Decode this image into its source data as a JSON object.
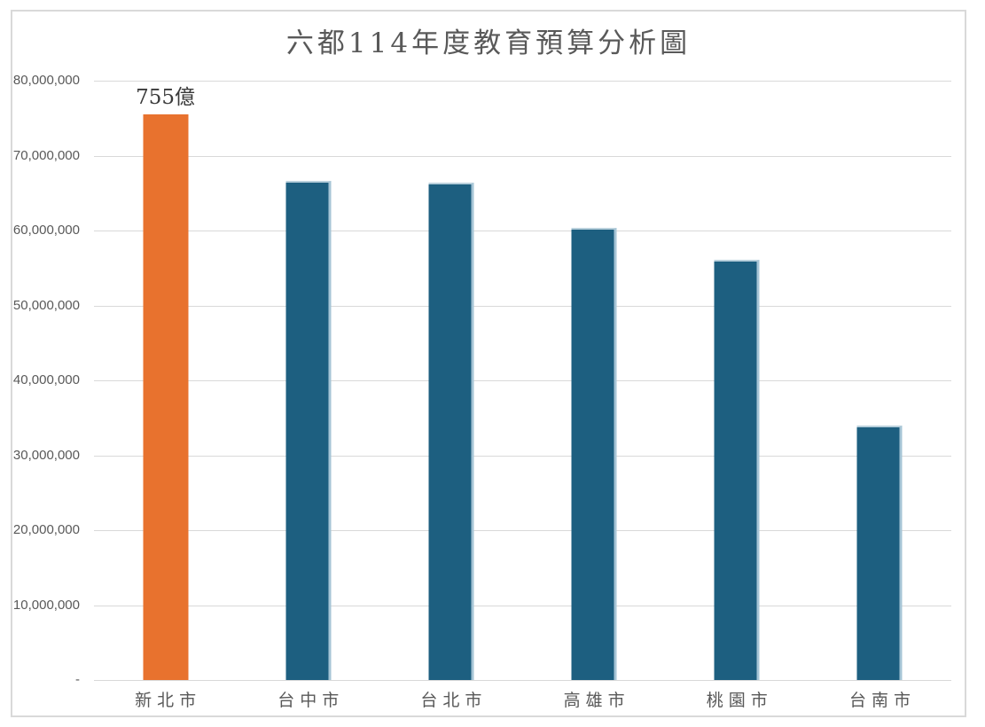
{
  "chart_data": {
    "type": "bar",
    "title": "六都114年度教育預算分析圖",
    "xlabel": "",
    "ylabel": "",
    "categories": [
      "新北市",
      "台中市",
      "台北市",
      "高雄市",
      "桃園市",
      "台南市"
    ],
    "values": [
      75500000,
      66600000,
      66400000,
      60400000,
      56100000,
      34000000
    ],
    "bar_labels": [
      "755億",
      "",
      "",
      "",
      "",
      ""
    ],
    "highlight_index": 0,
    "ylim": [
      0,
      80000000
    ],
    "ytick_step": 10000000,
    "yticks": [
      {
        "value": 0,
        "label": "-"
      },
      {
        "value": 10000000,
        "label": "10,000,000"
      },
      {
        "value": 20000000,
        "label": "20,000,000"
      },
      {
        "value": 30000000,
        "label": "30,000,000"
      },
      {
        "value": 40000000,
        "label": "40,000,000"
      },
      {
        "value": 50000000,
        "label": "50,000,000"
      },
      {
        "value": 60000000,
        "label": "60,000,000"
      },
      {
        "value": 70000000,
        "label": "70,000,000"
      },
      {
        "value": 80000000,
        "label": "80,000,000"
      }
    ],
    "grid": true,
    "legend": false,
    "colors": {
      "highlight_bar": "#E8722E",
      "default_bar": "#1D5F80",
      "gridline": "#D9D9D9",
      "axis_text": "#595959",
      "title_text": "#595959",
      "annotation_text": "#3A3A3A",
      "frame_border": "#D9D9D9"
    }
  }
}
